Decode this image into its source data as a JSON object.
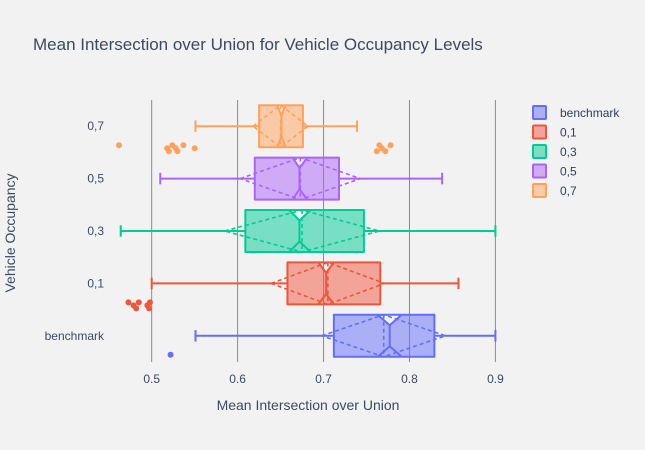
{
  "chart_data": {
    "type": "box",
    "orientation": "horizontal",
    "title": "Mean Intersection over Union for Vehicle Occupancy Levels",
    "xlabel": "Mean Intersection over Union",
    "ylabel": "Vehicle Occupancy",
    "xlim": [
      0.455,
      0.91
    ],
    "xticks": [
      0.5,
      0.6,
      0.7,
      0.8,
      0.9
    ],
    "xtick_labels": [
      "0.5",
      "0.6",
      "0.7",
      "0.8",
      "0.9"
    ],
    "grid": "vertical",
    "legend_position": "top-right",
    "categories": [
      "benchmark",
      "0,1",
      "0,3",
      "0,5",
      "0,7"
    ],
    "series": [
      {
        "name": "benchmark",
        "color": "#636efa",
        "category": "benchmark",
        "whisker_low": 0.551,
        "q1": 0.712,
        "median": 0.777,
        "q3": 0.829,
        "whisker_high": 0.9,
        "mean": 0.77,
        "sd": 0.072,
        "notch_low": 0.763,
        "notch_high": 0.791,
        "outliers": [
          0.522
        ]
      },
      {
        "name": "0,1",
        "color": "#ef553b",
        "category": "0,1",
        "whisker_low": 0.5,
        "q1": 0.658,
        "median": 0.703,
        "q3": 0.766,
        "whisker_high": 0.857,
        "mean": 0.705,
        "sd": 0.066,
        "notch_low": 0.694,
        "notch_high": 0.712,
        "outliers": [
          0.473,
          0.479,
          0.482,
          0.485,
          0.495,
          0.497,
          0.498
        ]
      },
      {
        "name": "0,3",
        "color": "#00cc96",
        "category": "0,3",
        "whisker_low": 0.464,
        "q1": 0.609,
        "median": 0.672,
        "q3": 0.747,
        "whisker_high": 0.9,
        "mean": 0.675,
        "sd": 0.09,
        "notch_low": 0.66,
        "notch_high": 0.685,
        "outliers": []
      },
      {
        "name": "0,5",
        "color": "#ab63fa",
        "category": "0,5",
        "whisker_low": 0.51,
        "q1": 0.62,
        "median": 0.672,
        "q3": 0.718,
        "whisker_high": 0.838,
        "mean": 0.673,
        "sd": 0.07,
        "notch_low": 0.664,
        "notch_high": 0.681,
        "outliers": []
      },
      {
        "name": "0,7",
        "color": "#ffa15a",
        "category": "0,7",
        "whisker_low": 0.551,
        "q1": 0.625,
        "median": 0.651,
        "q3": 0.676,
        "whisker_high": 0.739,
        "mean": 0.65,
        "sd": 0.032,
        "notch_low": 0.646,
        "notch_high": 0.656,
        "outliers": [
          0.462,
          0.518,
          0.52,
          0.524,
          0.528,
          0.53,
          0.537,
          0.55,
          0.762,
          0.765,
          0.768,
          0.772,
          0.778
        ]
      }
    ]
  }
}
